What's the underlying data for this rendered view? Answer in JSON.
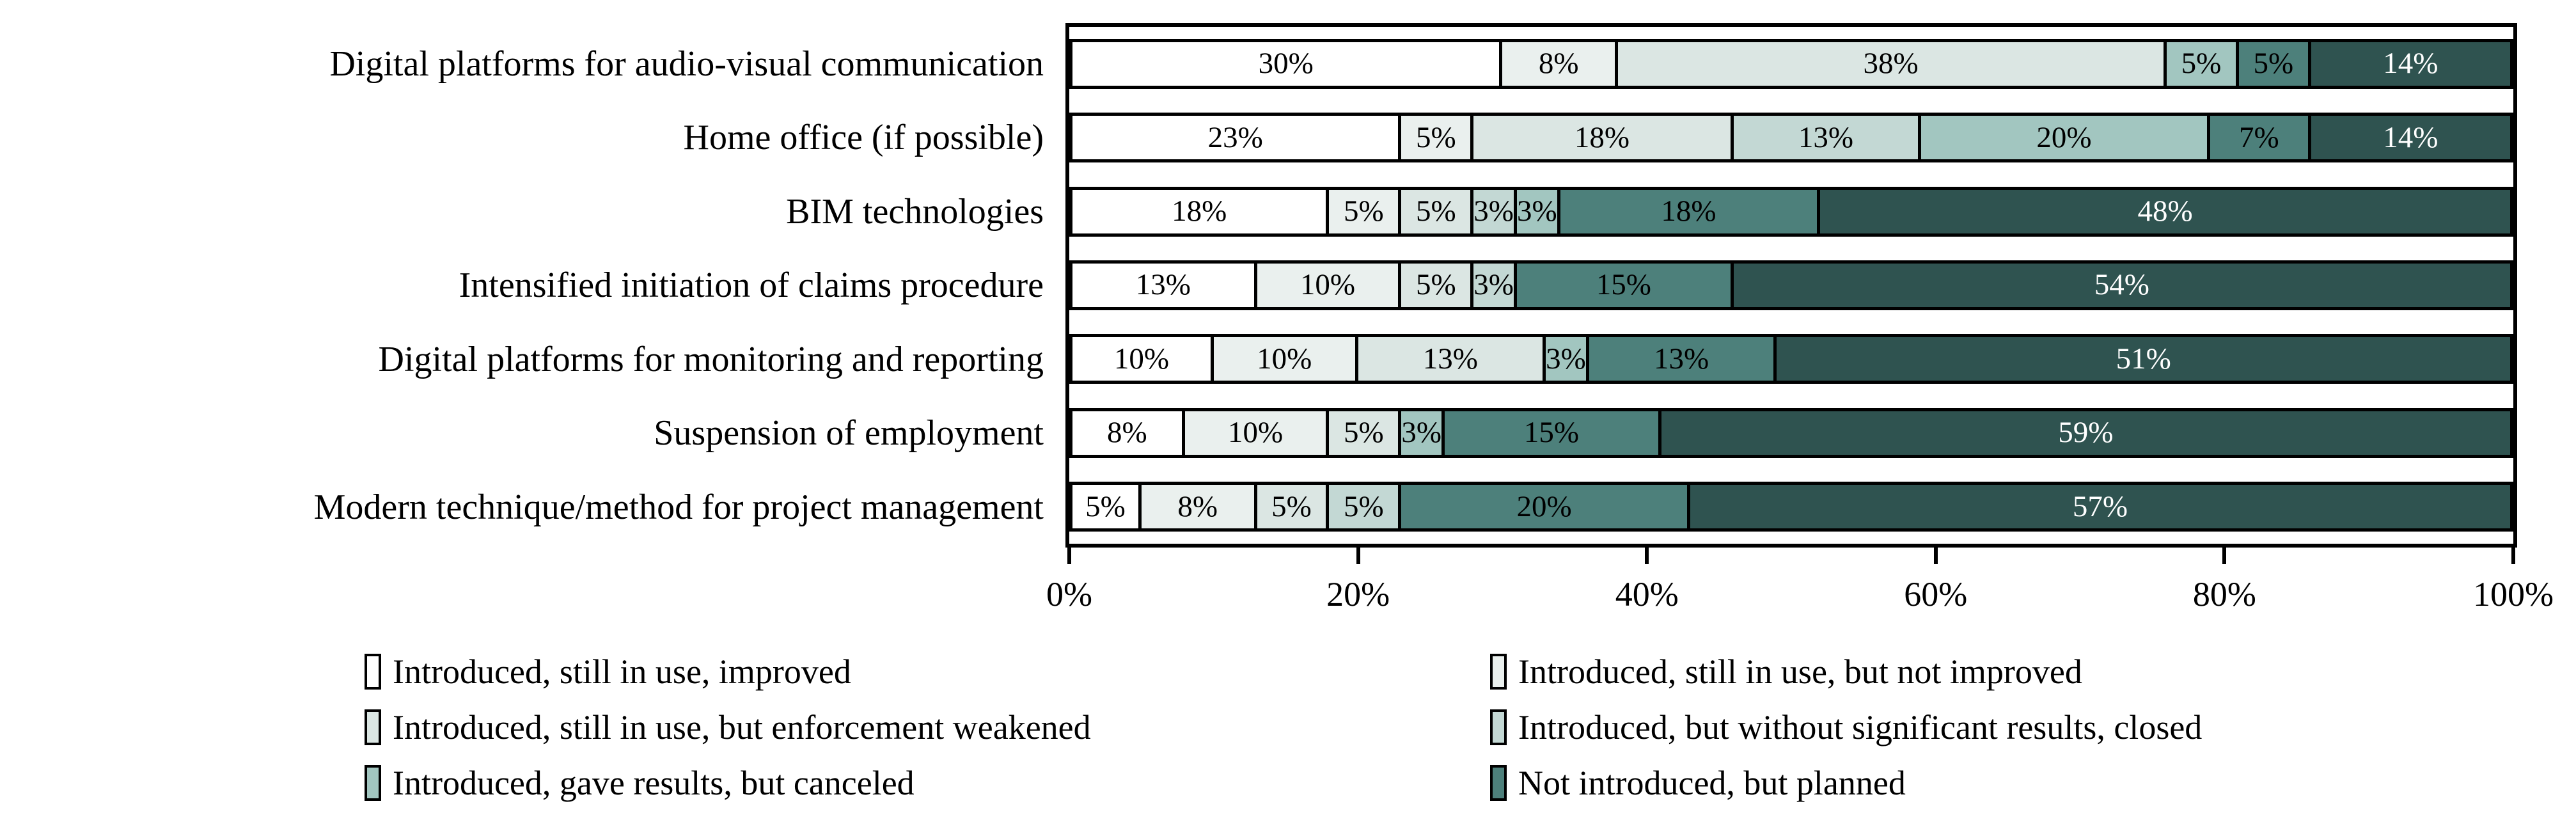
{
  "chart_data": {
    "type": "bar",
    "orientation": "horizontal-stacked",
    "title": "",
    "xlabel": "",
    "ylabel": "",
    "xlim": [
      0,
      100
    ],
    "x_tick_labels": [
      "0%",
      "20%",
      "40%",
      "60%",
      "80%",
      "100%"
    ],
    "x_tick_values": [
      0,
      20,
      40,
      60,
      80,
      100
    ],
    "grid": false,
    "legend_position": "bottom-two-columns",
    "categories": [
      "Digital platforms for audio-visual communication",
      "Home office (if possible)",
      "BIM technologies",
      "Intensified initiation of claims procedure",
      "Digital platforms for monitoring and reporting",
      "Suspension of employment",
      "Modern technique/method for project management"
    ],
    "series": [
      {
        "name": "Introduced, still in use, improved",
        "color_key": "c1",
        "legend_visible": true,
        "values": [
          30,
          23,
          18,
          13,
          10,
          8,
          5
        ]
      },
      {
        "name": "Introduced, still in use, but not improved",
        "color_key": "c2",
        "legend_visible": true,
        "values": [
          8,
          5,
          5,
          10,
          10,
          10,
          8
        ]
      },
      {
        "name": "Introduced, still in use, but enforcement weakened",
        "color_key": "c3",
        "legend_visible": true,
        "values": [
          38,
          18,
          5,
          5,
          13,
          5,
          5
        ]
      },
      {
        "name": "Introduced, but without significant results, closed",
        "color_key": "c4",
        "legend_visible": true,
        "values": [
          0,
          13,
          3,
          3,
          0,
          0,
          5
        ]
      },
      {
        "name": "Introduced, gave results, but canceled",
        "color_key": "c5",
        "legend_visible": true,
        "values": [
          5,
          20,
          3,
          0,
          3,
          3,
          0
        ]
      },
      {
        "name": "Not introduced, but planned",
        "color_key": "c6",
        "legend_visible": true,
        "values": [
          5,
          7,
          18,
          15,
          13,
          15,
          20
        ]
      },
      {
        "name": "",
        "color_key": "c7",
        "legend_visible": false,
        "values": [
          14,
          14,
          48,
          54,
          51,
          59,
          57
        ]
      }
    ],
    "rows": [
      {
        "label": "Digital platforms for audio-visual communication",
        "segments": [
          {
            "text": "30%",
            "value": 30,
            "color": "c1"
          },
          {
            "text": "8%",
            "value": 8,
            "color": "c2"
          },
          {
            "text": "38%",
            "value": 38,
            "color": "c3"
          },
          {
            "text": "5%",
            "value": 5,
            "color": "c5"
          },
          {
            "text": "5%",
            "value": 5,
            "color": "c6"
          },
          {
            "text": "14%",
            "value": 14,
            "color": "c7"
          }
        ]
      },
      {
        "label": "Home office (if possible)",
        "segments": [
          {
            "text": "23%",
            "value": 23,
            "color": "c1"
          },
          {
            "text": "5%",
            "value": 5,
            "color": "c2"
          },
          {
            "text": "18%",
            "value": 18,
            "color": "c3"
          },
          {
            "text": "13%",
            "value": 13,
            "color": "c4"
          },
          {
            "text": "20%",
            "value": 20,
            "color": "c5"
          },
          {
            "text": "7%",
            "value": 7,
            "color": "c6"
          },
          {
            "text": "14%",
            "value": 14,
            "color": "c7"
          }
        ]
      },
      {
        "label": "BIM technologies",
        "segments": [
          {
            "text": "18%",
            "value": 18,
            "color": "c1"
          },
          {
            "text": "5%",
            "value": 5,
            "color": "c2"
          },
          {
            "text": "5%",
            "value": 5,
            "color": "c3"
          },
          {
            "text": "3%",
            "value": 3,
            "color": "c4"
          },
          {
            "text": "3%",
            "value": 3,
            "color": "c5"
          },
          {
            "text": "18%",
            "value": 18,
            "color": "c6"
          },
          {
            "text": "48%",
            "value": 48,
            "color": "c7"
          }
        ]
      },
      {
        "label": "Intensified initiation of claims procedure",
        "segments": [
          {
            "text": "13%",
            "value": 13,
            "color": "c1"
          },
          {
            "text": "10%",
            "value": 10,
            "color": "c2"
          },
          {
            "text": "5%",
            "value": 5,
            "color": "c3"
          },
          {
            "text": "3%",
            "value": 3,
            "color": "c4"
          },
          {
            "text": "15%",
            "value": 15,
            "color": "c6"
          },
          {
            "text": "54%",
            "value": 54,
            "color": "c7"
          }
        ]
      },
      {
        "label": "Digital platforms for monitoring and reporting",
        "segments": [
          {
            "text": "10%",
            "value": 10,
            "color": "c1"
          },
          {
            "text": "10%",
            "value": 10,
            "color": "c2"
          },
          {
            "text": "13%",
            "value": 13,
            "color": "c3"
          },
          {
            "text": "3%",
            "value": 3,
            "color": "c5"
          },
          {
            "text": "13%",
            "value": 13,
            "color": "c6"
          },
          {
            "text": "51%",
            "value": 51,
            "color": "c7"
          }
        ]
      },
      {
        "label": "Suspension of employment",
        "segments": [
          {
            "text": "8%",
            "value": 8,
            "color": "c1"
          },
          {
            "text": "10%",
            "value": 10,
            "color": "c2"
          },
          {
            "text": "5%",
            "value": 5,
            "color": "c3"
          },
          {
            "text": "3%",
            "value": 3,
            "color": "c5"
          },
          {
            "text": "15%",
            "value": 15,
            "color": "c6"
          },
          {
            "text": "59%",
            "value": 59,
            "color": "c7"
          }
        ]
      },
      {
        "label": "Modern technique/method for project management",
        "segments": [
          {
            "text": "5%",
            "value": 5,
            "color": "c1"
          },
          {
            "text": "8%",
            "value": 8,
            "color": "c2"
          },
          {
            "text": "5%",
            "value": 5,
            "color": "c3"
          },
          {
            "text": "5%",
            "value": 5,
            "color": "c4"
          },
          {
            "text": "20%",
            "value": 20,
            "color": "c6"
          },
          {
            "text": "57%",
            "value": 57,
            "color": "c7"
          }
        ]
      }
    ]
  },
  "palette": {
    "c1": "#ffffff",
    "c2": "#eaf0ee",
    "c3": "#dbe6e3",
    "c4": "#c3d8d4",
    "c5": "#a2c6c0",
    "c6": "#4d807b",
    "c7": "#2f5350",
    "segment_border": "#000000",
    "label_on_dark": "#ffffff",
    "label_on_light": "#000000"
  },
  "legend": {
    "columns": [
      [
        {
          "label": "Introduced, still in use, improved",
          "color": "c1"
        },
        {
          "label": "Introduced, still in use, but enforcement weakened",
          "color": "c3"
        },
        {
          "label": "Introduced, gave results, but canceled",
          "color": "c5"
        }
      ],
      [
        {
          "label": "Introduced, still in use, but not improved",
          "color": "c2"
        },
        {
          "label": "Introduced, but without significant results, closed",
          "color": "c4"
        },
        {
          "label": "Not introduced, but planned",
          "color": "c6"
        }
      ]
    ]
  }
}
